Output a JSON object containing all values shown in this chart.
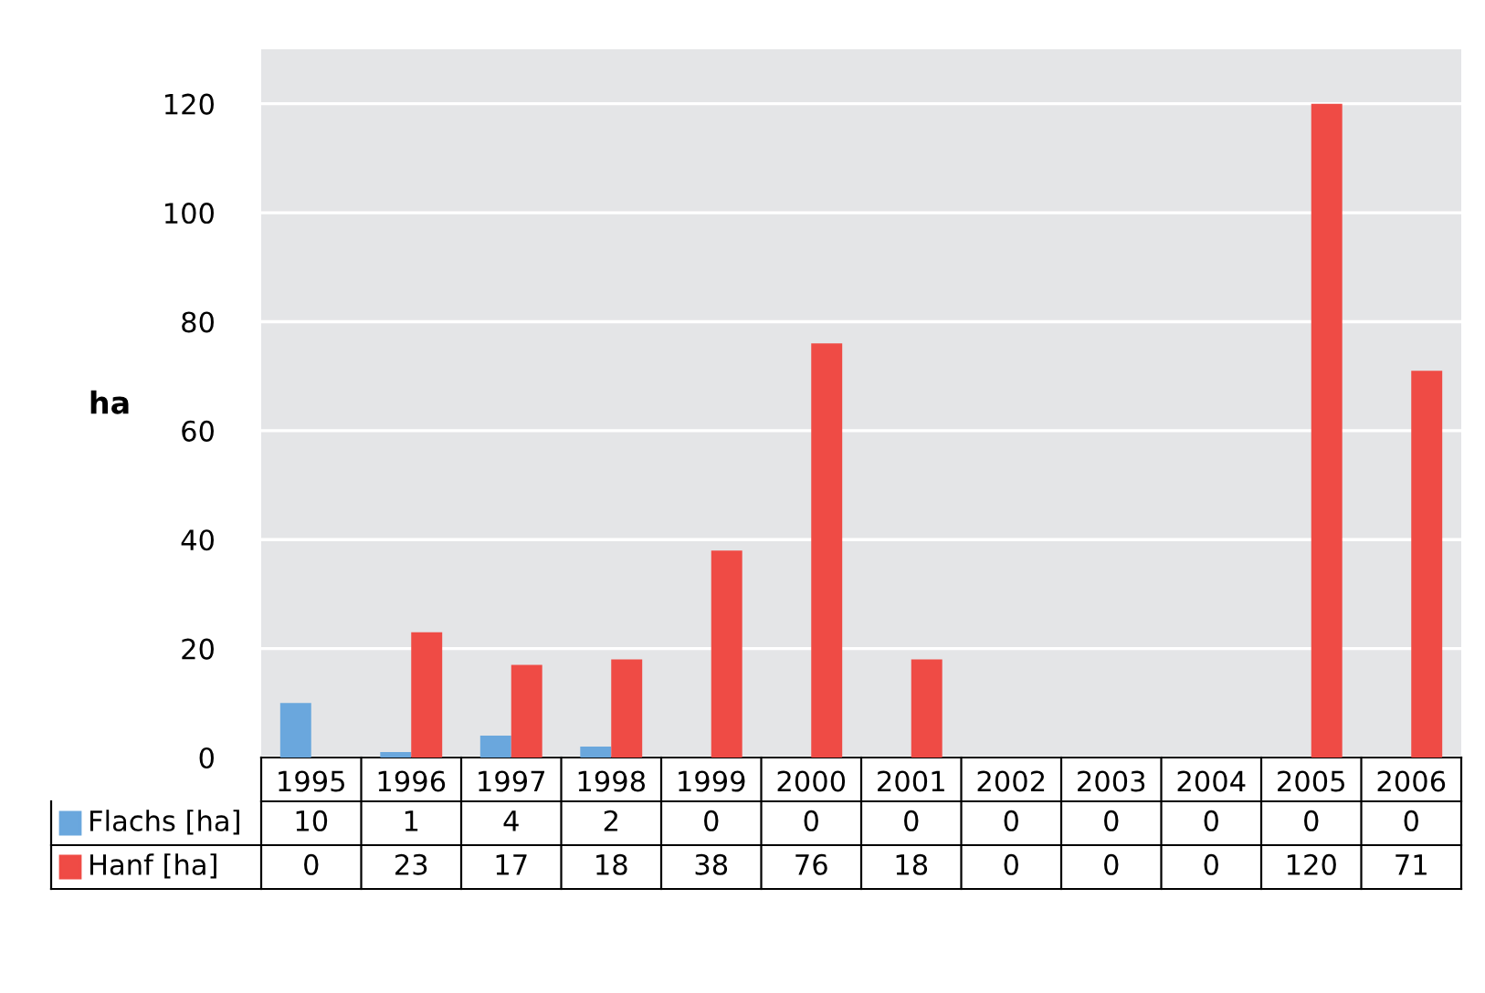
{
  "chart_data": {
    "type": "bar",
    "ylabel": "ha",
    "categories": [
      "1995",
      "1996",
      "1997",
      "1998",
      "1999",
      "2000",
      "2001",
      "2002",
      "2003",
      "2004",
      "2005",
      "2006"
    ],
    "series": [
      {
        "name": "Flachs [ha]",
        "color": "#6aa7dd",
        "values": [
          10,
          1,
          4,
          2,
          0,
          0,
          0,
          0,
          0,
          0,
          0,
          0
        ]
      },
      {
        "name": "Hanf [ha]",
        "color": "#ef4b45",
        "values": [
          0,
          23,
          17,
          18,
          38,
          76,
          18,
          0,
          0,
          0,
          120,
          71
        ]
      }
    ],
    "ylim": [
      0,
      130
    ],
    "yticks": [
      0,
      20,
      40,
      60,
      80,
      100,
      120
    ],
    "grid": "y",
    "data_labels": true,
    "legend": "bottom left"
  }
}
